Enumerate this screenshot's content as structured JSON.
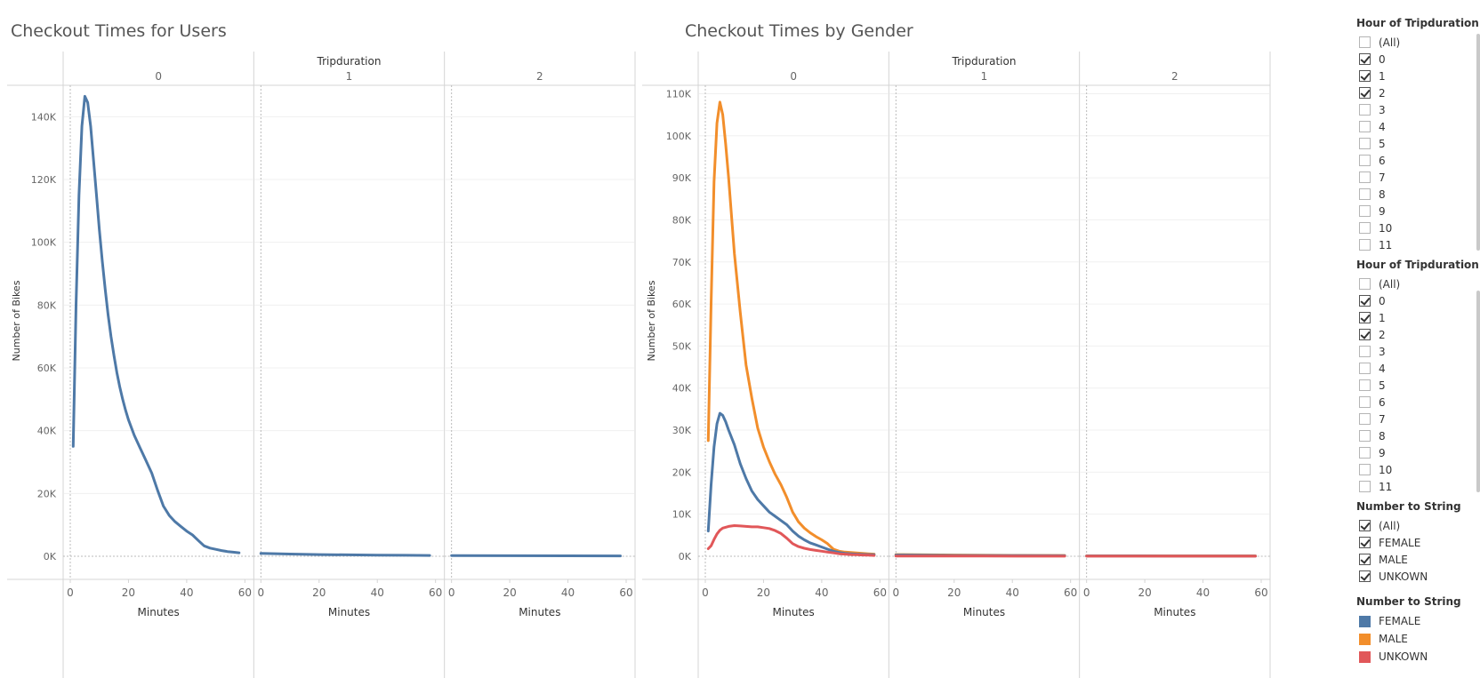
{
  "titles": {
    "users": "Checkout Times for Users",
    "gender": "Checkout Times by Gender"
  },
  "chart_data": [
    {
      "type": "line",
      "title": "Checkout Times for Users",
      "column_header": "Tripduration",
      "panels": [
        "0",
        "1",
        "2"
      ],
      "xlabel": "Minutes",
      "ylabel": "Number of Bikes",
      "xlim": [
        0,
        60
      ],
      "x_ticks": [
        "0",
        "20",
        "40",
        "60"
      ],
      "ylim": [
        0,
        150000
      ],
      "y_ticks": [
        {
          "v": 0,
          "label": "0K"
        },
        {
          "v": 20000,
          "label": "20K"
        },
        {
          "v": 40000,
          "label": "40K"
        },
        {
          "v": 60000,
          "label": "60K"
        },
        {
          "v": 80000,
          "label": "80K"
        },
        {
          "v": 100000,
          "label": "100K"
        },
        {
          "v": 120000,
          "label": "120K"
        },
        {
          "v": 140000,
          "label": "140K"
        }
      ],
      "series": [
        {
          "color": "#4e79a7",
          "panels": [
            [
              [
                1,
                35000
              ],
              [
                2,
                80000
              ],
              [
                3,
                115000
              ],
              [
                4,
                137000
              ],
              [
                5,
                146500
              ],
              [
                6,
                144500
              ],
              [
                7,
                137000
              ],
              [
                8,
                126000
              ],
              [
                9,
                115000
              ],
              [
                10,
                104000
              ],
              [
                11,
                94000
              ],
              [
                12,
                85000
              ],
              [
                13,
                77000
              ],
              [
                14,
                70000
              ],
              [
                15,
                64000
              ],
              [
                16,
                58500
              ],
              [
                17,
                54000
              ],
              [
                18,
                50000
              ],
              [
                19,
                46500
              ],
              [
                20,
                43500
              ],
              [
                22,
                38500
              ],
              [
                24,
                34500
              ],
              [
                26,
                30500
              ],
              [
                28,
                26500
              ],
              [
                30,
                21000
              ],
              [
                32,
                16000
              ],
              [
                34,
                13000
              ],
              [
                36,
                11000
              ],
              [
                38,
                9500
              ],
              [
                40,
                8000
              ],
              [
                42,
                6800
              ],
              [
                44,
                5000
              ],
              [
                46,
                3300
              ],
              [
                48,
                2600
              ],
              [
                50,
                2200
              ],
              [
                52,
                1800
              ],
              [
                54,
                1500
              ],
              [
                56,
                1300
              ],
              [
                58,
                1100
              ]
            ],
            [
              [
                0,
                900
              ],
              [
                10,
                700
              ],
              [
                20,
                550
              ],
              [
                30,
                450
              ],
              [
                40,
                380
              ],
              [
                50,
                320
              ],
              [
                58,
                250
              ]
            ],
            [
              [
                0,
                200
              ],
              [
                20,
                170
              ],
              [
                40,
                140
              ],
              [
                58,
                120
              ]
            ]
          ]
        }
      ]
    },
    {
      "type": "line",
      "title": "Checkout Times by Gender",
      "column_header": "Tripduration",
      "panels": [
        "0",
        "1",
        "2"
      ],
      "xlabel": "Minutes",
      "ylabel": "Number of Bikes",
      "xlim": [
        0,
        60
      ],
      "x_ticks": [
        "0",
        "20",
        "40",
        "60"
      ],
      "ylim": [
        0,
        112000
      ],
      "y_ticks": [
        {
          "v": 0,
          "label": "0K"
        },
        {
          "v": 10000,
          "label": "10K"
        },
        {
          "v": 20000,
          "label": "20K"
        },
        {
          "v": 30000,
          "label": "30K"
        },
        {
          "v": 40000,
          "label": "40K"
        },
        {
          "v": 50000,
          "label": "50K"
        },
        {
          "v": 60000,
          "label": "60K"
        },
        {
          "v": 70000,
          "label": "70K"
        },
        {
          "v": 80000,
          "label": "80K"
        },
        {
          "v": 90000,
          "label": "90K"
        },
        {
          "v": 100000,
          "label": "100K"
        },
        {
          "v": 110000,
          "label": "110K"
        }
      ],
      "series": [
        {
          "name": "MALE",
          "color": "#f28e2b",
          "panels": [
            [
              [
                1,
                27500
              ],
              [
                2,
                60000
              ],
              [
                3,
                89000
              ],
              [
                4,
                103000
              ],
              [
                5,
                108000
              ],
              [
                6,
                105000
              ],
              [
                7,
                98000
              ],
              [
                8,
                90000
              ],
              [
                10,
                72000
              ],
              [
                12,
                58000
              ],
              [
                14,
                45500
              ],
              [
                16,
                37500
              ],
              [
                18,
                30500
              ],
              [
                20,
                26000
              ],
              [
                22,
                22500
              ],
              [
                24,
                19500
              ],
              [
                26,
                17000
              ],
              [
                28,
                14000
              ],
              [
                30,
                10500
              ],
              [
                32,
                8200
              ],
              [
                34,
                6700
              ],
              [
                36,
                5600
              ],
              [
                38,
                4700
              ],
              [
                40,
                3900
              ],
              [
                42,
                3000
              ],
              [
                44,
                1700
              ],
              [
                46,
                1200
              ],
              [
                48,
                1000
              ],
              [
                50,
                900
              ],
              [
                52,
                800
              ],
              [
                54,
                700
              ],
              [
                56,
                600
              ],
              [
                58,
                500
              ]
            ],
            [
              [
                0,
                400
              ],
              [
                20,
                300
              ],
              [
                40,
                220
              ],
              [
                58,
                180
              ]
            ],
            [
              [
                0,
                100
              ],
              [
                30,
                90
              ],
              [
                58,
                80
              ]
            ]
          ]
        },
        {
          "name": "FEMALE",
          "color": "#4e79a7",
          "panels": [
            [
              [
                1,
                6000
              ],
              [
                2,
                17000
              ],
              [
                3,
                26000
              ],
              [
                4,
                31500
              ],
              [
                5,
                34000
              ],
              [
                6,
                33500
              ],
              [
                7,
                32000
              ],
              [
                8,
                30000
              ],
              [
                10,
                26500
              ],
              [
                12,
                22000
              ],
              [
                14,
                18500
              ],
              [
                16,
                15500
              ],
              [
                18,
                13500
              ],
              [
                20,
                12000
              ],
              [
                22,
                10500
              ],
              [
                24,
                9500
              ],
              [
                26,
                8500
              ],
              [
                28,
                7500
              ],
              [
                30,
                6000
              ],
              [
                32,
                4800
              ],
              [
                34,
                3900
              ],
              [
                36,
                3200
              ],
              [
                38,
                2700
              ],
              [
                40,
                2200
              ],
              [
                42,
                1700
              ],
              [
                44,
                1200
              ],
              [
                46,
                900
              ],
              [
                48,
                700
              ],
              [
                50,
                600
              ],
              [
                52,
                500
              ],
              [
                54,
                450
              ],
              [
                56,
                400
              ],
              [
                58,
                350
              ]
            ],
            [
              [
                0,
                300
              ],
              [
                20,
                200
              ],
              [
                40,
                150
              ],
              [
                58,
                120
              ]
            ],
            [
              [
                0,
                80
              ],
              [
                30,
                70
              ],
              [
                58,
                60
              ]
            ]
          ]
        },
        {
          "name": "UNKOWN",
          "color": "#e15759",
          "panels": [
            [
              [
                1,
                1800
              ],
              [
                2,
                2500
              ],
              [
                3,
                4000
              ],
              [
                4,
                5300
              ],
              [
                5,
                6200
              ],
              [
                6,
                6700
              ],
              [
                8,
                7100
              ],
              [
                10,
                7300
              ],
              [
                12,
                7200
              ],
              [
                14,
                7100
              ],
              [
                16,
                7000
              ],
              [
                18,
                7000
              ],
              [
                20,
                6800
              ],
              [
                22,
                6600
              ],
              [
                24,
                6100
              ],
              [
                26,
                5400
              ],
              [
                28,
                4300
              ],
              [
                30,
                3000
              ],
              [
                32,
                2300
              ],
              [
                34,
                1900
              ],
              [
                36,
                1600
              ],
              [
                38,
                1400
              ],
              [
                40,
                1200
              ],
              [
                42,
                1000
              ],
              [
                44,
                800
              ],
              [
                46,
                600
              ],
              [
                48,
                500
              ],
              [
                50,
                400
              ],
              [
                52,
                350
              ],
              [
                54,
                300
              ],
              [
                56,
                250
              ],
              [
                58,
                200
              ]
            ],
            [
              [
                0,
                60
              ],
              [
                30,
                40
              ],
              [
                58,
                30
              ]
            ],
            [
              [
                0,
                20
              ],
              [
                58,
                15
              ]
            ]
          ]
        }
      ]
    }
  ],
  "filters": [
    {
      "title": "Hour of Tripduration",
      "items": [
        {
          "label": "(All)",
          "checked": false
        },
        {
          "label": "0",
          "checked": true
        },
        {
          "label": "1",
          "checked": true
        },
        {
          "label": "2",
          "checked": true
        },
        {
          "label": "3",
          "checked": false
        },
        {
          "label": "4",
          "checked": false
        },
        {
          "label": "5",
          "checked": false
        },
        {
          "label": "6",
          "checked": false
        },
        {
          "label": "7",
          "checked": false
        },
        {
          "label": "8",
          "checked": false
        },
        {
          "label": "9",
          "checked": false
        },
        {
          "label": "10",
          "checked": false
        },
        {
          "label": "11",
          "checked": false
        }
      ]
    },
    {
      "title": "Hour of Tripduration",
      "items": [
        {
          "label": "(All)",
          "checked": false
        },
        {
          "label": "0",
          "checked": true
        },
        {
          "label": "1",
          "checked": true
        },
        {
          "label": "2",
          "checked": true
        },
        {
          "label": "3",
          "checked": false
        },
        {
          "label": "4",
          "checked": false
        },
        {
          "label": "5",
          "checked": false
        },
        {
          "label": "6",
          "checked": false
        },
        {
          "label": "7",
          "checked": false
        },
        {
          "label": "8",
          "checked": false
        },
        {
          "label": "9",
          "checked": false
        },
        {
          "label": "10",
          "checked": false
        },
        {
          "label": "11",
          "checked": false
        }
      ]
    },
    {
      "title": "Number to String",
      "items": [
        {
          "label": "(All)",
          "checked": true
        },
        {
          "label": "FEMALE",
          "checked": true
        },
        {
          "label": "MALE",
          "checked": true
        },
        {
          "label": "UNKOWN",
          "checked": true
        }
      ]
    }
  ],
  "legend": {
    "title": "Number to String",
    "items": [
      {
        "label": "FEMALE",
        "color": "#4e79a7"
      },
      {
        "label": "MALE",
        "color": "#f28e2b"
      },
      {
        "label": "UNKOWN",
        "color": "#e15759"
      }
    ]
  }
}
